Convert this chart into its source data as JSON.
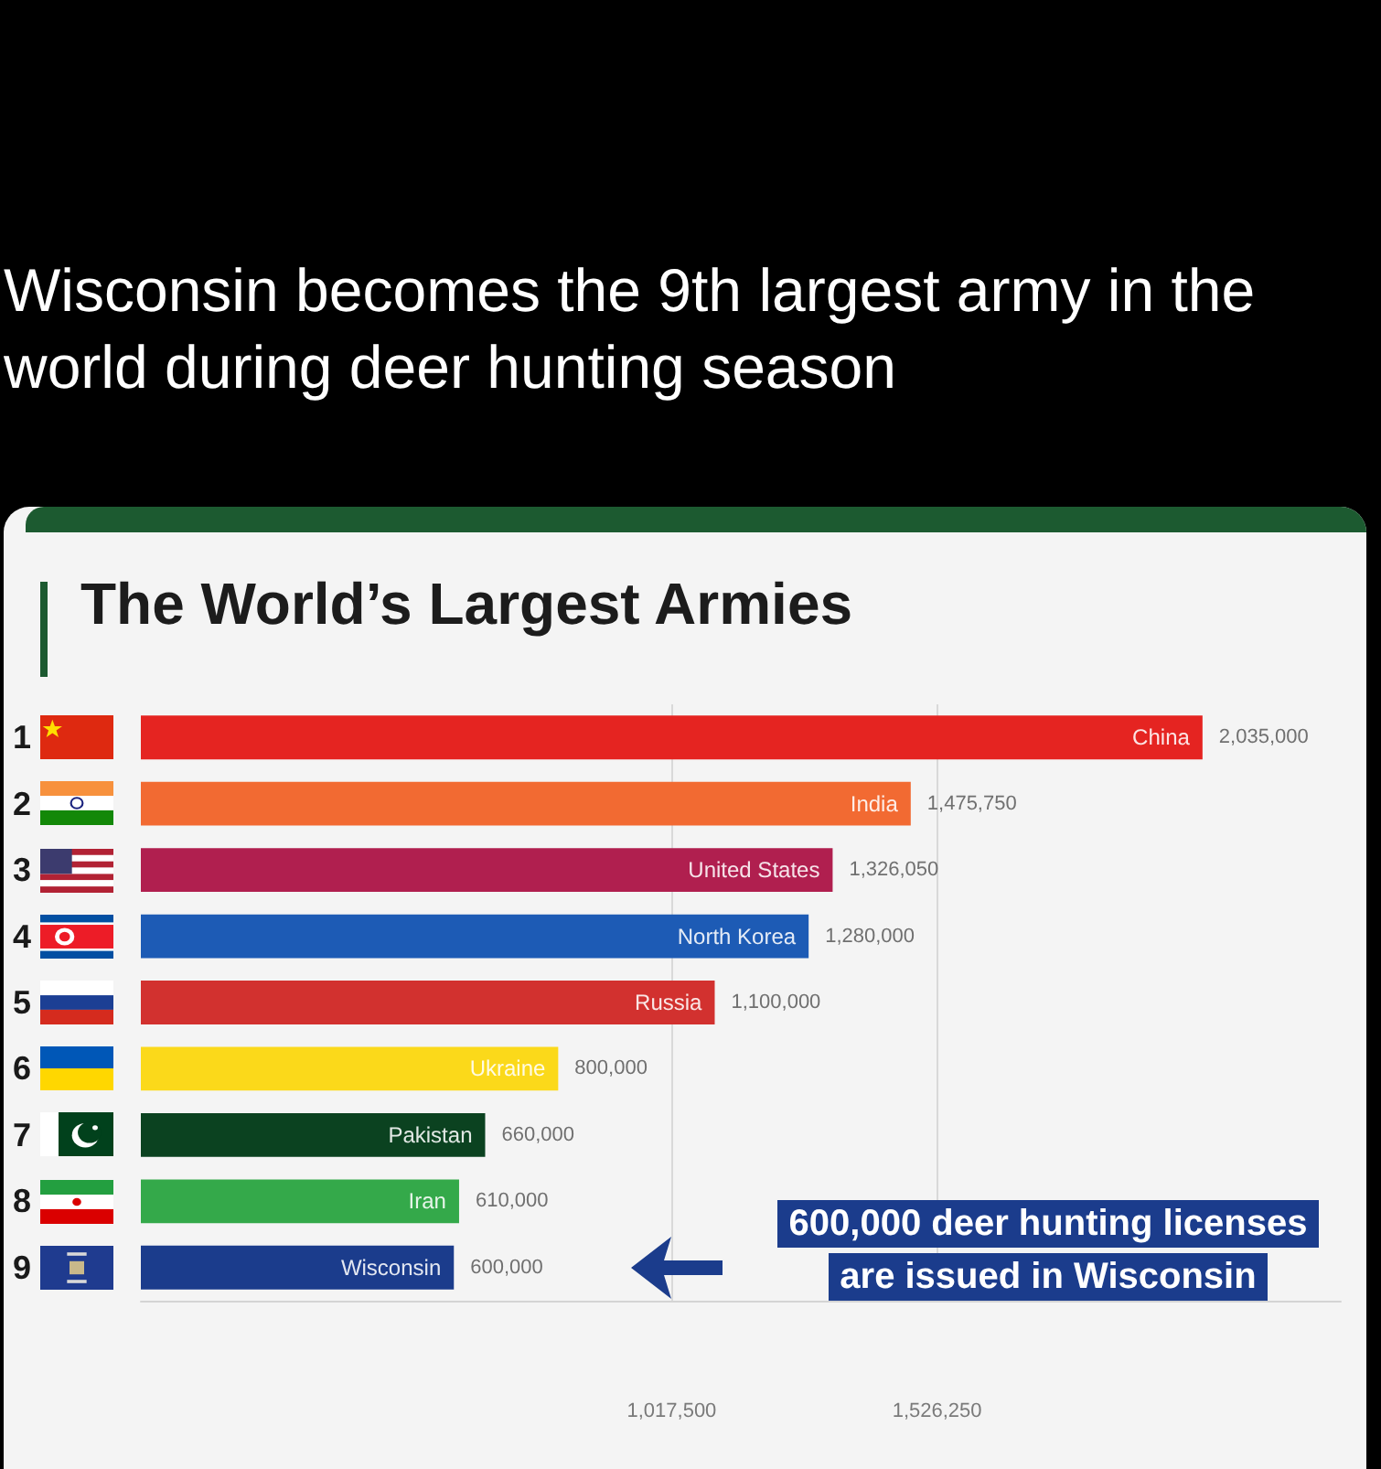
{
  "chart_data": {
    "type": "bar",
    "orientation": "horizontal",
    "title": "The World’s Largest Armies",
    "subtitle": "Wisconsin becomes the 9th largest army in the world during deer hunting season",
    "categories": [
      "China",
      "India",
      "United States",
      "North Korea",
      "Russia",
      "Ukraine",
      "Pakistan",
      "Iran",
      "Wisconsin"
    ],
    "values": [
      2035000,
      1475750,
      1326050,
      1280000,
      1100000,
      800000,
      660000,
      610000,
      600000
    ],
    "colors": [
      "#e52421",
      "#f26a32",
      "#b01f4f",
      "#1d5bb5",
      "#d2312f",
      "#fbd91a",
      "#0b4220",
      "#34a94a",
      "#1b3c8c"
    ],
    "value_labels": [
      "2,035,000",
      "1,475,750",
      "1,326,050",
      "1,280,000",
      "1,100,000",
      "800,000",
      "660,000",
      "610,000",
      "600,000"
    ],
    "xlim": [
      0,
      2300000
    ],
    "xticks": [
      {
        "value": 1017500,
        "label": "1,017,500"
      },
      {
        "value": 1526250,
        "label": "1,526,250"
      }
    ],
    "grid": "x",
    "annotations": [
      "1",
      "2",
      "3",
      "4",
      "5",
      "6",
      "7",
      "8",
      "9",
      "600,000 deer hunting licenses are issued in Wisconsin"
    ]
  }
}
